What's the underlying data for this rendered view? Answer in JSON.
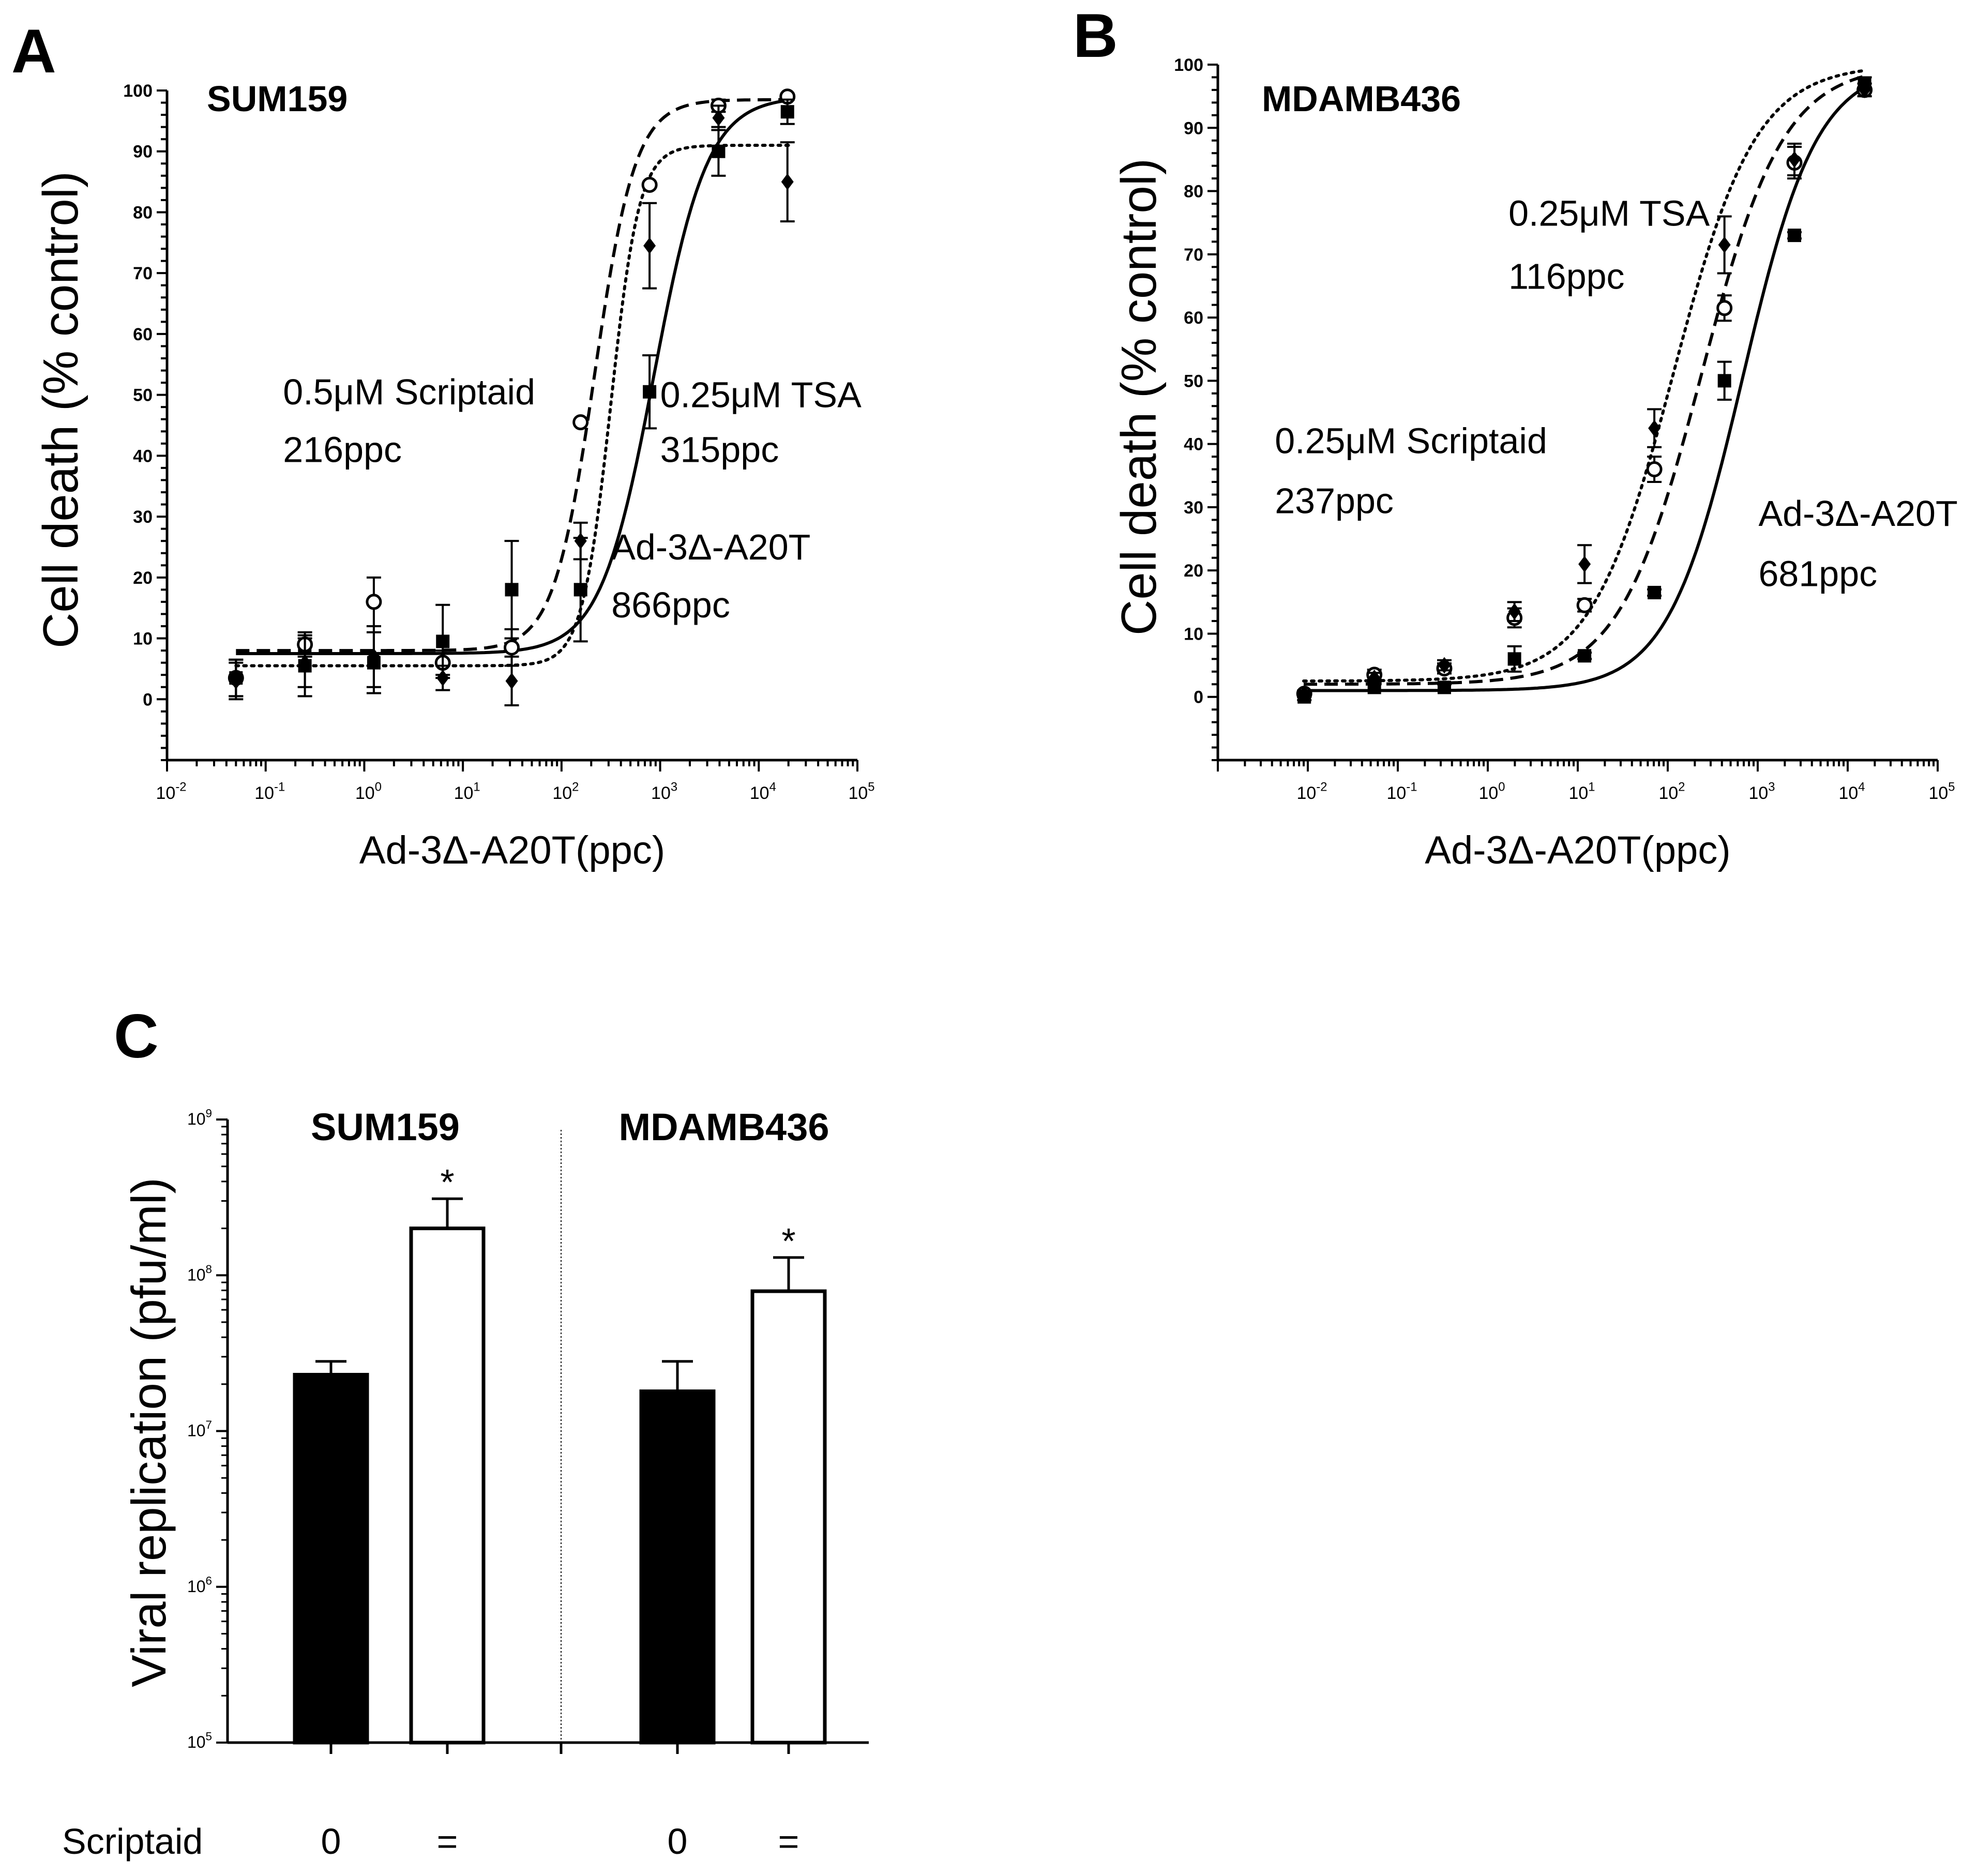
{
  "chart_data": [
    {
      "id": "A",
      "type": "scatter",
      "panel_label": "A",
      "title": "SUM159",
      "xlabel": "Ad-3Δ-A20T(ppc)",
      "ylabel": "Cell death (% control)",
      "xscale": "log",
      "xlim": [
        0.01,
        100000
      ],
      "ylim": [
        -10,
        100
      ],
      "ytick_labels": [
        "0",
        "10",
        "20",
        "30",
        "40",
        "50",
        "60",
        "70",
        "80",
        "90",
        "100"
      ],
      "xtick_labels": [
        {
          "base": "10",
          "exp": "-2"
        },
        {
          "base": "10",
          "exp": "-1"
        },
        {
          "base": "10",
          "exp": "0"
        },
        {
          "base": "10",
          "exp": "1"
        },
        {
          "base": "10",
          "exp": "2"
        },
        {
          "base": "10",
          "exp": "3"
        },
        {
          "base": "10",
          "exp": "4"
        },
        {
          "base": "10",
          "exp": "5"
        }
      ],
      "series": [
        {
          "name": "0.5μM Scriptaid",
          "marker": "circle-open",
          "line": "dashed",
          "x": [
            0.05,
            0.25,
            1.25,
            6.25,
            31.25,
            156,
            781,
            3906,
            19531
          ],
          "y": [
            3.5,
            9,
            16,
            6,
            8.5,
            45.5,
            84.5,
            97.5,
            99
          ],
          "err": [
            3,
            2,
            4,
            2,
            3,
            0,
            0,
            1,
            0
          ],
          "fit": {
            "bottom": 8,
            "top": 98.5,
            "ec50": 216,
            "hill": 2.1
          }
        },
        {
          "name": "0.25μM TSA",
          "marker": "diamond",
          "line": "dotted",
          "x": [
            0.05,
            0.25,
            1.25,
            6.25,
            31.25,
            156,
            781,
            3906,
            19531
          ],
          "y": [
            3,
            6,
            7,
            3.5,
            3,
            26,
            74.5,
            95.5,
            85
          ],
          "err": [
            3,
            4,
            5,
            2,
            4,
            3,
            7,
            2,
            6.5
          ],
          "fit": {
            "bottom": 5.5,
            "top": 91,
            "ec50": 315,
            "hill": 3
          }
        },
        {
          "name": "Ad-3Δ-A20T",
          "marker": "square-filled",
          "line": "solid",
          "x": [
            0.05,
            0.25,
            1.25,
            6.25,
            31.25,
            156,
            781,
            3906,
            19531
          ],
          "y": [
            3.5,
            5.5,
            6,
            9.5,
            18,
            18,
            50.5,
            90,
            96.5
          ],
          "err": [
            3,
            5,
            5,
            6,
            8,
            8.5,
            6,
            4,
            2
          ],
          "fit": {
            "bottom": 7.5,
            "top": 99,
            "ec50": 866,
            "hill": 1.6
          }
        }
      ],
      "annotations": [
        {
          "text": "0.5μM Scriptaid",
          "anchor": "left-middle",
          "x": 0.15,
          "y": 50.5
        },
        {
          "text": "216ppc",
          "anchor": "left-middle",
          "x": 0.15,
          "y": 41
        },
        {
          "text": "0.25μM TSA",
          "anchor": "left-middle",
          "x": 1000,
          "y": 50
        },
        {
          "text": "315ppc",
          "anchor": "left-middle",
          "x": 1000,
          "y": 41
        },
        {
          "text": "Ad-3Δ-A20T",
          "anchor": "left-middle",
          "x": 320,
          "y": 25
        },
        {
          "text": "866ppc",
          "anchor": "left-middle",
          "x": 320,
          "y": 15.5
        }
      ]
    },
    {
      "id": "B",
      "type": "scatter",
      "panel_label": "B",
      "title": "MDAMB436",
      "xlabel": "Ad-3Δ-A20T(ppc)",
      "ylabel": "Cell death (% control)",
      "xscale": "log",
      "xlim": [
        0.001,
        100000
      ],
      "ylim": [
        -10,
        100
      ],
      "ytick_labels": [
        "0",
        "10",
        "20",
        "30",
        "40",
        "50",
        "60",
        "70",
        "80",
        "90",
        "100"
      ],
      "xtick_labels": [
        {
          "base": "10",
          "exp": "-2"
        },
        {
          "base": "10",
          "exp": "-1"
        },
        {
          "base": "10",
          "exp": "0"
        },
        {
          "base": "10",
          "exp": "1"
        },
        {
          "base": "10",
          "exp": "2"
        },
        {
          "base": "10",
          "exp": "3"
        },
        {
          "base": "10",
          "exp": "4"
        },
        {
          "base": "10",
          "exp": "5"
        }
      ],
      "series": [
        {
          "name": "0.25μM Scriptaid",
          "marker": "circle-open",
          "line": "dashed",
          "x": [
            0.00914,
            0.0549,
            0.329,
            1.98,
            11.9,
            71,
            427,
            2560,
            15400
          ],
          "y": [
            0.5,
            3.5,
            4.5,
            12.5,
            14.5,
            36,
            61.5,
            84.5,
            96
          ],
          "err": [
            0.5,
            0.8,
            0.8,
            1.5,
            1,
            2,
            2,
            2.5,
            1
          ],
          "fit": {
            "bottom": 2,
            "top": 100,
            "ec50": 237,
            "hill": 0.95
          }
        },
        {
          "name": "0.25μM TSA",
          "marker": "diamond",
          "line": "dotted",
          "x": [
            0.00914,
            0.0549,
            0.329,
            1.98,
            11.9,
            71,
            427,
            2560,
            15400
          ],
          "y": [
            0.5,
            3,
            5,
            13.5,
            21,
            42.5,
            71.5,
            85,
            96
          ],
          "err": [
            0.5,
            0.8,
            0.8,
            1.5,
            3,
            3,
            4.5,
            2.5,
            1
          ],
          "fit": {
            "bottom": 2.5,
            "top": 100,
            "ec50": 116,
            "hill": 0.95
          }
        },
        {
          "name": "Ad-3Δ-A20T",
          "marker": "square-filled",
          "line": "solid",
          "x": [
            0.00914,
            0.0549,
            0.329,
            1.98,
            11.9,
            71,
            427,
            2560,
            15400
          ],
          "y": [
            0,
            1.5,
            1.5,
            6,
            6.5,
            16.5,
            50,
            73,
            97
          ],
          "err": [
            0.5,
            0.5,
            0.5,
            2,
            0.5,
            0.5,
            3,
            0.5,
            1
          ],
          "fit": {
            "bottom": 1,
            "top": 100,
            "ec50": 681,
            "hill": 1.05
          }
        }
      ],
      "annotations": [
        {
          "text": "0.25μM TSA",
          "anchor": "left-middle",
          "x": 1.7,
          "y": 76.5
        },
        {
          "text": "116ppc",
          "anchor": "left-middle",
          "x": 1.7,
          "y": 66.5
        },
        {
          "text": "0.25μM Scriptaid",
          "anchor": "left-middle",
          "x": 0.0043,
          "y": 40.5
        },
        {
          "text": "237ppc",
          "anchor": "left-middle",
          "x": 0.0043,
          "y": 31
        },
        {
          "text": "Ad-3Δ-A20T",
          "anchor": "left-middle",
          "x": 1020,
          "y": 29
        },
        {
          "text": "681ppc",
          "anchor": "left-middle",
          "x": 1020,
          "y": 19.5
        }
      ]
    },
    {
      "id": "C",
      "type": "bar",
      "panel_label": "C",
      "ylabel": "Viral replication (pfu/ml)",
      "yscale": "log",
      "ylim": [
        100000,
        1000000000
      ],
      "ytick_labels": [
        {
          "base": "10",
          "exp": "5"
        },
        {
          "base": "10",
          "exp": "6"
        },
        {
          "base": "10",
          "exp": "7"
        },
        {
          "base": "10",
          "exp": "8"
        },
        {
          "base": "10",
          "exp": "9"
        }
      ],
      "groups": [
        "SUM159",
        "MDAMB436"
      ],
      "row_label": "Scriptaid",
      "categories": [
        "0",
        "=",
        "0",
        "="
      ],
      "bar_fill": [
        "black",
        "white",
        "black",
        "white"
      ],
      "values": [
        23000000,
        200000000,
        18000000,
        79000000
      ],
      "err_upper": [
        28000000,
        310000000,
        28000000,
        130000000
      ],
      "significance": [
        "",
        "*",
        "",
        "*"
      ]
    }
  ]
}
